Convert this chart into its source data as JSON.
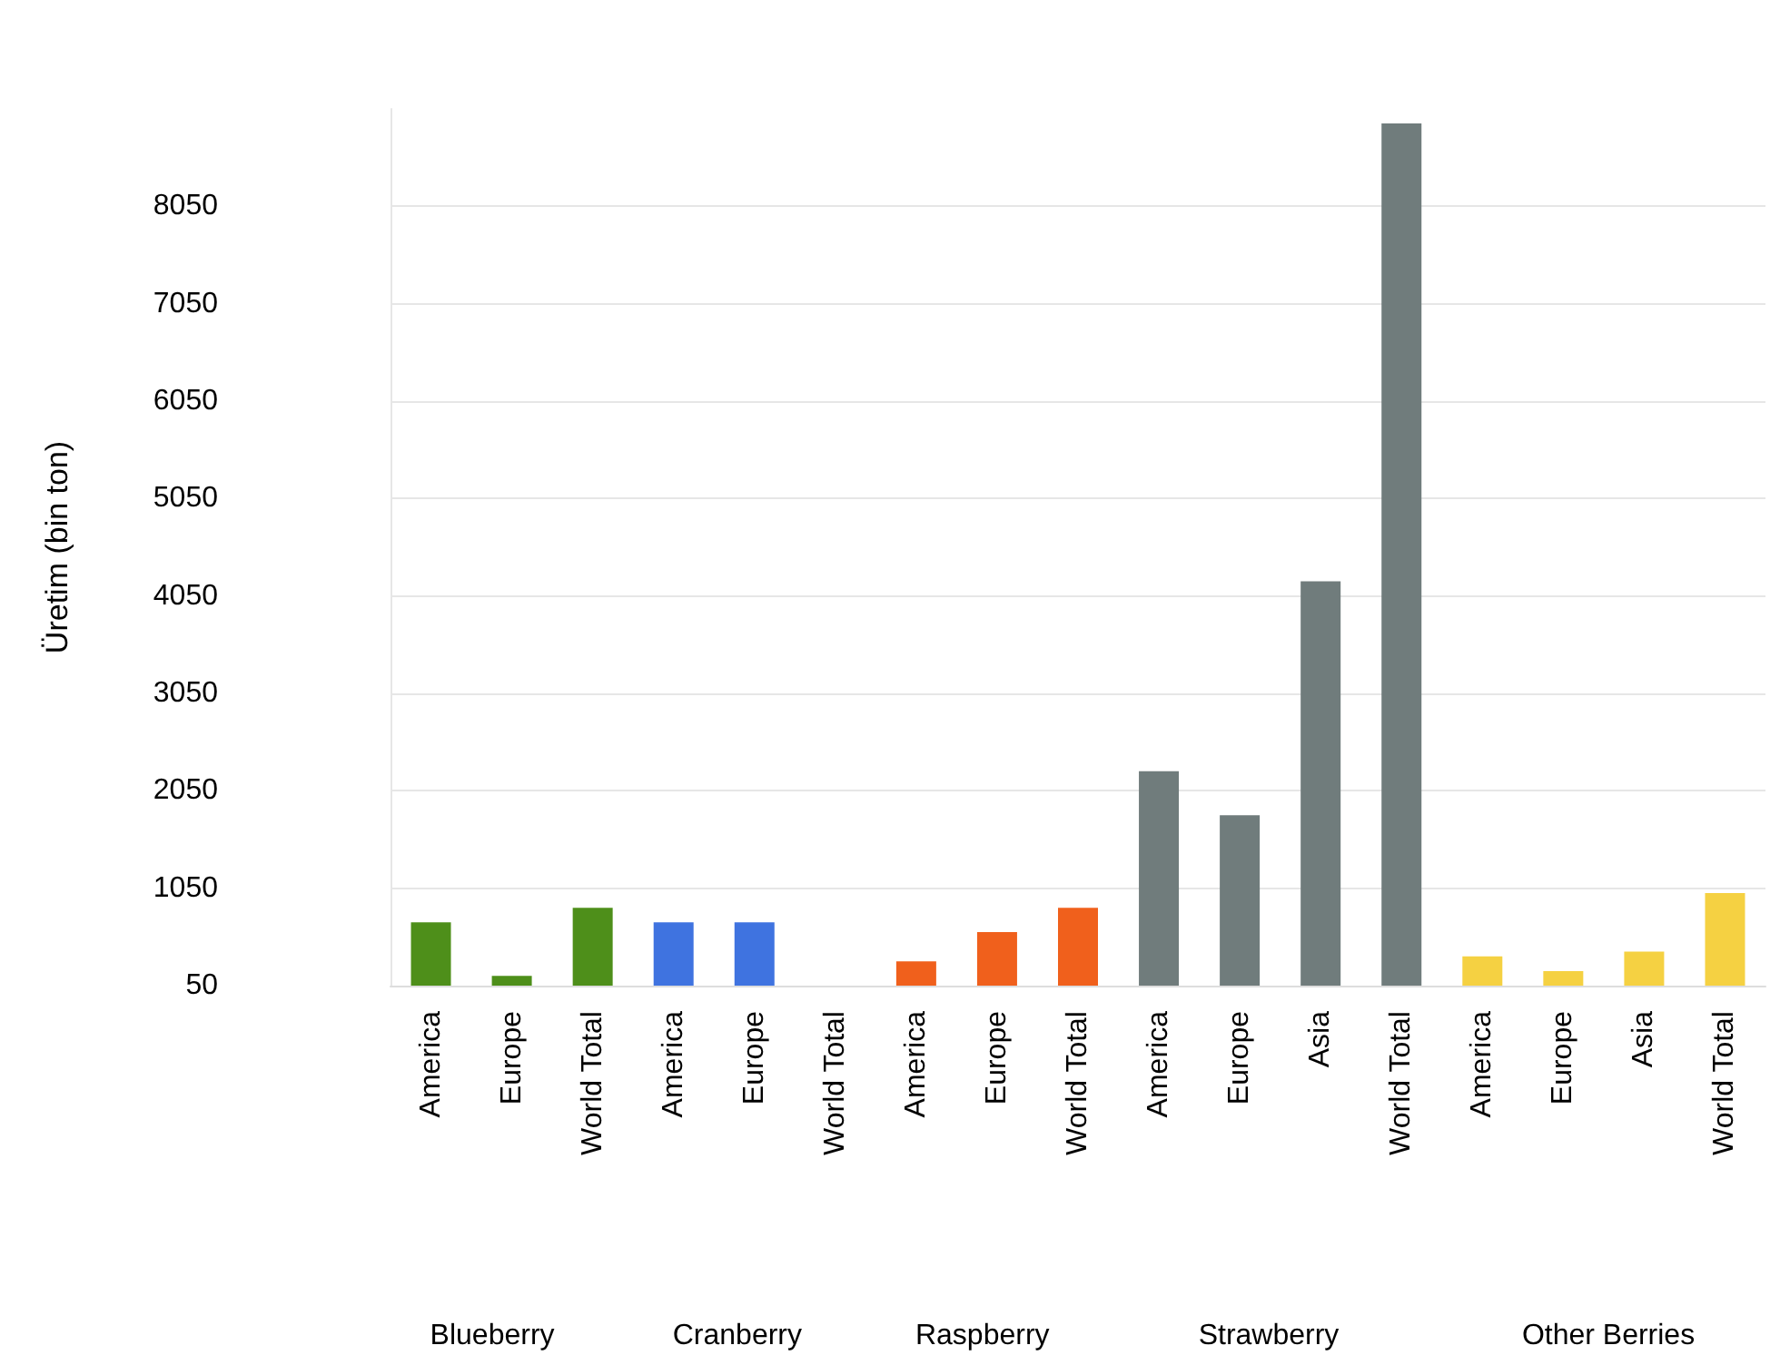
{
  "chart_data": {
    "type": "bar",
    "ylabel": "Üretim (bin ton)",
    "categories": [
      "America",
      "Europe",
      "World Total",
      "America",
      "Europe",
      "World Total",
      "America",
      "Europe",
      "World Total",
      "America",
      "Europe",
      "Asia",
      "World Total",
      "America",
      "Europe",
      "Asia",
      "World Total"
    ],
    "values": [
      700,
      150,
      850,
      700,
      700,
      null,
      300,
      600,
      850,
      2250,
      1800,
      4200,
      8900,
      350,
      200,
      400,
      1000
    ],
    "colors": [
      "#4e8f1a",
      "#4e8f1a",
      "#4e8f1a",
      "#3f73e0",
      "#3f73e0",
      null,
      "#f0601c",
      "#f0601c",
      "#f0601c",
      "#707c7c",
      "#707c7c",
      "#707c7c",
      "#707c7c",
      "#f5d142",
      "#f5d142",
      "#f5d142",
      "#f5d142"
    ],
    "annotations": [
      "Blueberry",
      "Cranberry",
      "Raspberry",
      "Strawberry",
      "Other Berries"
    ],
    "ylim": [
      50,
      9050
    ],
    "yticks": [
      50,
      1050,
      2050,
      3050,
      4050,
      5050,
      6050,
      7050,
      8050
    ],
    "grid": "y"
  }
}
